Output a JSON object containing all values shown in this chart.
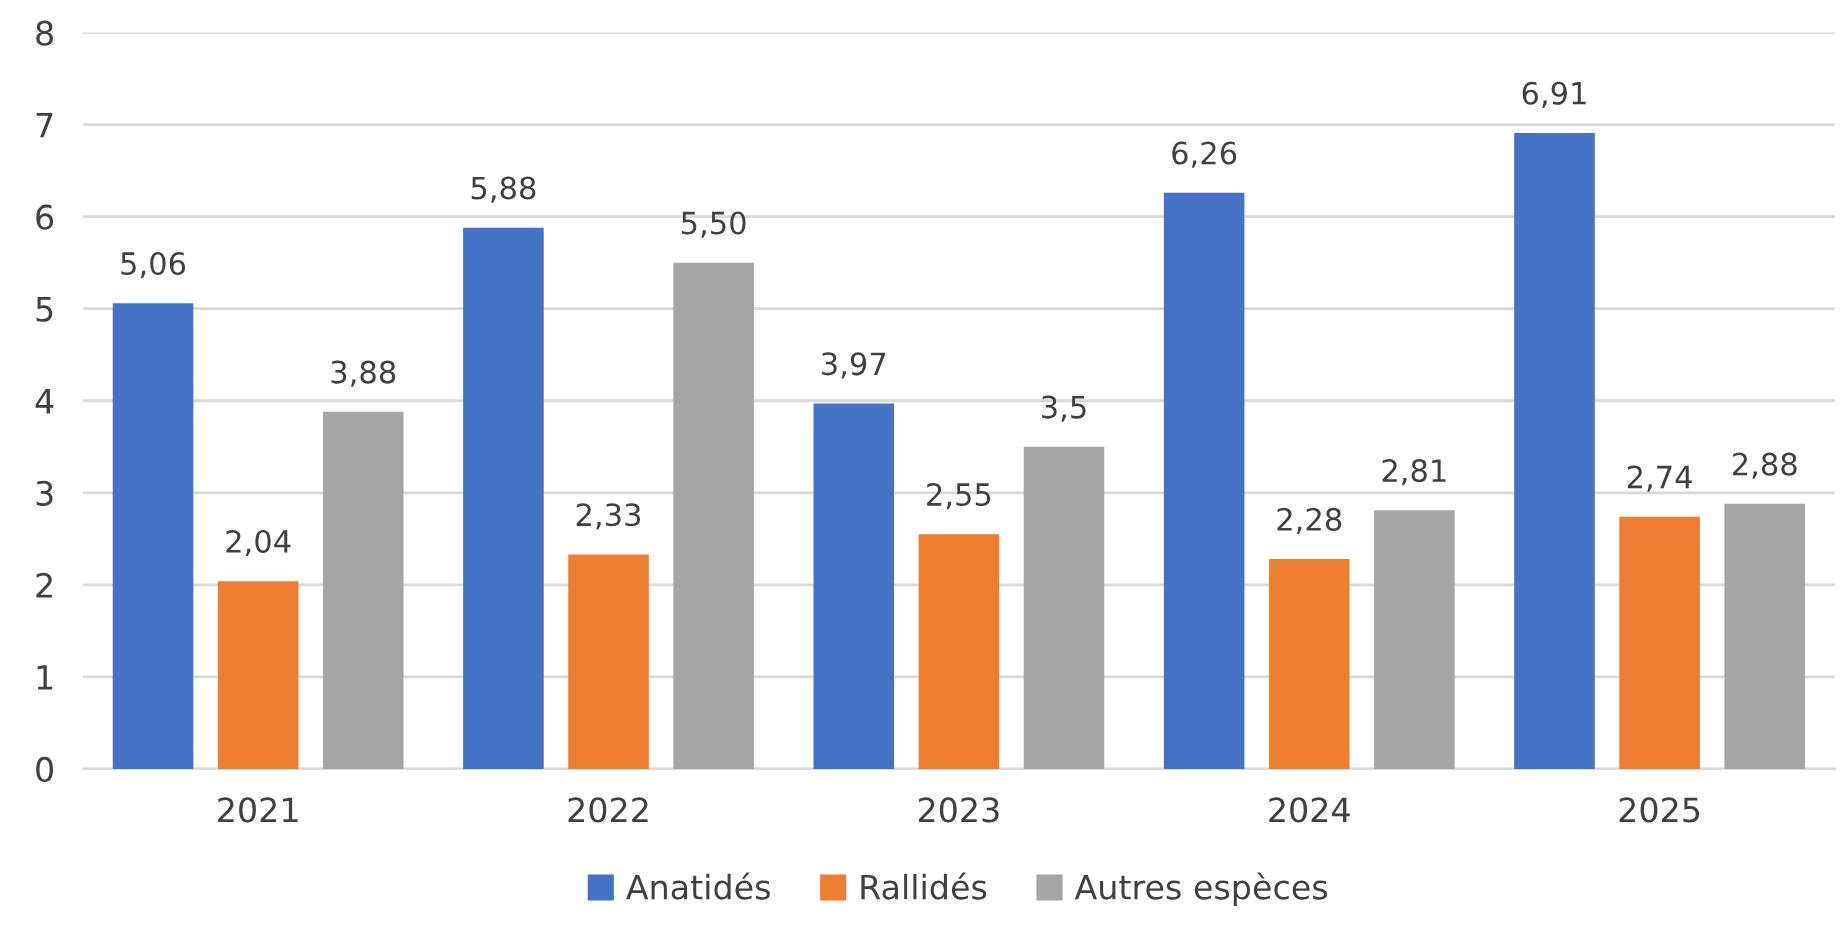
{
  "chart_data": {
    "type": "bar",
    "categories": [
      "2021",
      "2022",
      "2023",
      "2024",
      "2025"
    ],
    "series": [
      {
        "name": "Anatidés",
        "color": "#4472c4",
        "values": [
          5.06,
          5.88,
          3.97,
          6.26,
          6.91
        ],
        "value_labels": [
          "5,06",
          "5,88",
          "3,97",
          "6,26",
          "6,91"
        ]
      },
      {
        "name": "Rallidés",
        "color": "#ed7d31",
        "values": [
          2.04,
          2.33,
          2.55,
          2.28,
          2.74
        ],
        "value_labels": [
          "2,04",
          "2,33",
          "2,55",
          "2,28",
          "2,74"
        ]
      },
      {
        "name": "Autres espèces",
        "color": "#a5a5a5",
        "values": [
          3.88,
          5.5,
          3.5,
          2.81,
          2.88
        ],
        "value_labels": [
          "3,88",
          "5,50",
          "3,5",
          "2,81",
          "2,88"
        ]
      }
    ],
    "ylim": [
      0,
      8
    ],
    "yticks": [
      0,
      1,
      2,
      3,
      4,
      5,
      6,
      7,
      8
    ],
    "grid": "y",
    "legend": "bottom"
  }
}
